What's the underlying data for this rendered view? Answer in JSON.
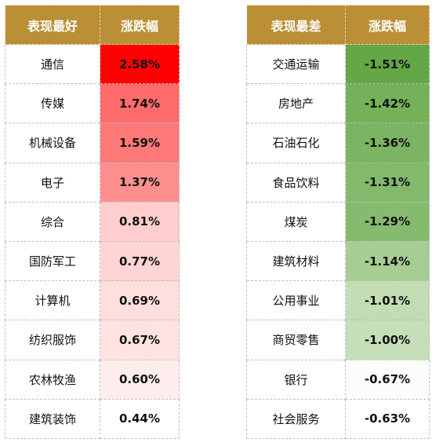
{
  "headers": {
    "best": "表现最好",
    "best_change": "涨跌幅",
    "worst": "表现最差",
    "worst_change": "涨跌幅"
  },
  "rows": [
    {
      "best_name": "通信",
      "best_pct": "2.58%",
      "best_color": "#ff0000",
      "worst_name": "交通运输",
      "worst_pct": "-1.51%",
      "worst_color": "#63a746"
    },
    {
      "best_name": "传媒",
      "best_pct": "1.74%",
      "best_color": "#fe6b6b",
      "worst_name": "房地产",
      "worst_pct": "-1.42%",
      "worst_color": "#74b159"
    },
    {
      "best_name": "机械设备",
      "best_pct": "1.59%",
      "best_color": "#ff7878",
      "worst_name": "石油石化",
      "worst_pct": "-1.36%",
      "worst_color": "#7bb563"
    },
    {
      "best_name": "电子",
      "best_pct": "1.37%",
      "best_color": "#ff8f8f",
      "worst_name": "食品饮料",
      "worst_pct": "-1.31%",
      "worst_color": "#82b96b"
    },
    {
      "best_name": "综合",
      "best_pct": "0.81%",
      "best_color": "#ffcdcd",
      "worst_name": "煤炭",
      "worst_pct": "-1.29%",
      "worst_color": "#86bb6f"
    },
    {
      "best_name": "国防军工",
      "best_pct": "0.77%",
      "best_color": "#ffd4d4",
      "worst_name": "建筑材料",
      "worst_pct": "-1.14%",
      "worst_color": "#a7cd94"
    },
    {
      "best_name": "计算机",
      "best_pct": "0.69%",
      "best_color": "#ffdede",
      "worst_name": "公用事业",
      "worst_pct": "-1.01%",
      "worst_color": "#c2ddb4"
    },
    {
      "best_name": "纺织服饰",
      "best_pct": "0.67%",
      "best_color": "#ffe2e2",
      "worst_name": "商贸零售",
      "worst_pct": "-1.00%",
      "worst_color": "#c5dfb8"
    },
    {
      "best_name": "农林牧渔",
      "best_pct": "0.60%",
      "best_color": "#ffeded",
      "worst_name": "银行",
      "worst_pct": "-0.67%",
      "worst_color": "#fbfdfa"
    },
    {
      "best_name": "建筑装饰",
      "best_pct": "0.44%",
      "best_color": "#ffffff",
      "worst_name": "社会服务",
      "worst_pct": "-0.63%",
      "worst_color": "#ffffff"
    }
  ]
}
